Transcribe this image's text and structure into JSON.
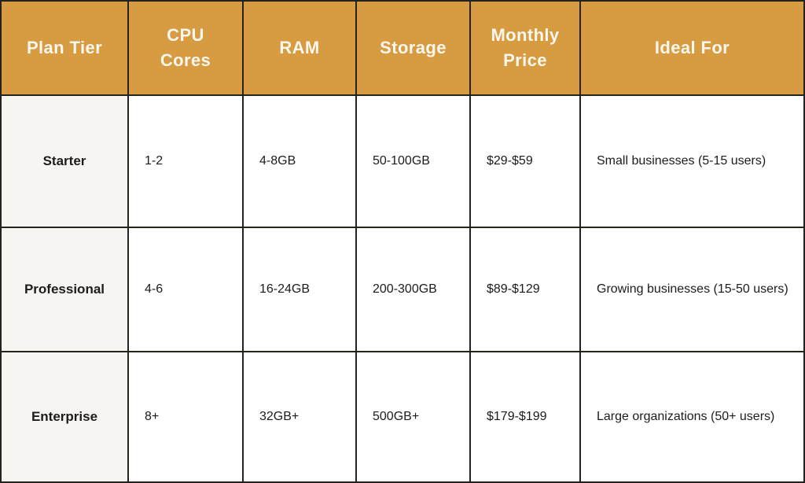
{
  "colors": {
    "header_bg": "#D79B41",
    "header_text": "#FBF7EF",
    "row_label_bg": "#F7F5F2",
    "cell_bg": "#FFFFFF",
    "body_text": "#1C1C1C",
    "border": "#26221D"
  },
  "chart_data": {
    "type": "table",
    "columns": [
      "Plan Tier",
      "CPU Cores",
      "RAM",
      "Storage",
      "Monthly Price",
      "Ideal For"
    ],
    "rows": [
      [
        "Starter",
        "1-2",
        "4-8GB",
        "50-100GB",
        "$29-$59",
        "Small businesses (5-15 users)"
      ],
      [
        "Professional",
        "4-6",
        "16-24GB",
        "200-300GB",
        "$89-$129",
        "Growing businesses (15-50 users)"
      ],
      [
        "Enterprise",
        "8+",
        "32GB+",
        "500GB+",
        "$179-$199",
        "Large organizations (50+ users)"
      ]
    ]
  }
}
